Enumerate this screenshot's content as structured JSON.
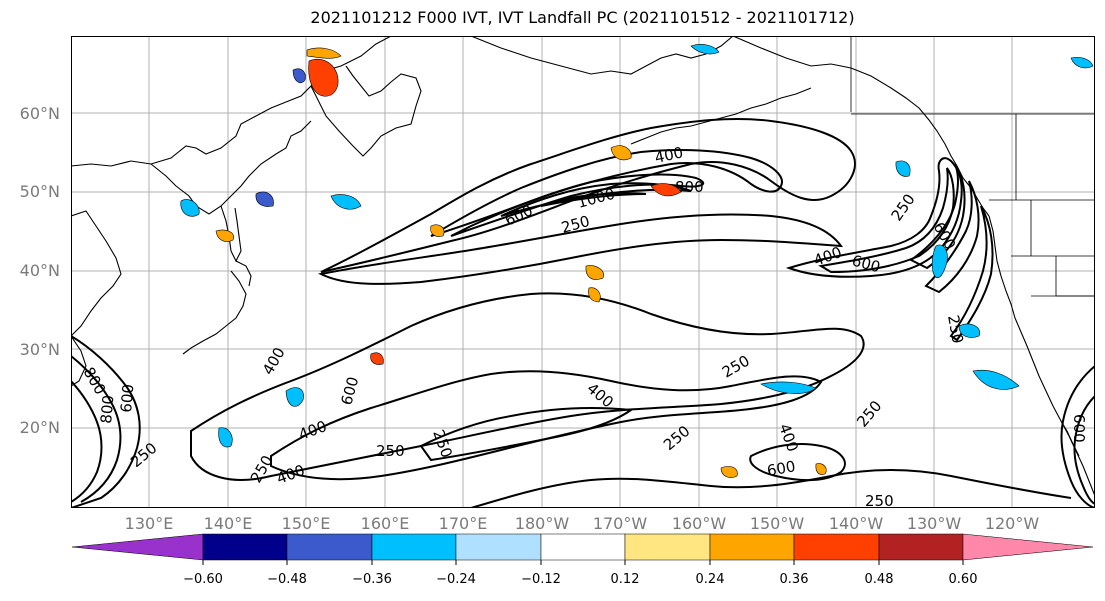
{
  "title": "2021101212 F000 IVT, IVT Landfall PC (2021101512 - 2021101712)",
  "lat_labels": [
    "60°N",
    "50°N",
    "40°N",
    "30°N",
    "20°N"
  ],
  "lon_labels": [
    "130°E",
    "140°E",
    "150°E",
    "160°E",
    "170°E",
    "180°W",
    "170°W",
    "160°W",
    "150°W",
    "140°W",
    "130°W",
    "120°W"
  ],
  "contour_labels": [
    "400",
    "800",
    "600",
    "1000",
    "250",
    "250",
    "400",
    "600",
    "250",
    "600",
    "250",
    "400",
    "600",
    "800",
    "600",
    "800",
    "400",
    "250",
    "250",
    "400",
    "250",
    "400",
    "250",
    "250",
    "400",
    "600",
    "250",
    "250",
    "600"
  ],
  "colorbar": {
    "ticks": [
      "−0.60",
      "−0.48",
      "−0.36",
      "−0.24",
      "−0.12",
      "0.12",
      "0.24",
      "0.36",
      "0.48",
      "0.60"
    ],
    "colors": [
      "#9932cc",
      "#00008b",
      "#3b5bcd",
      "#00bfff",
      "#b0e0ff",
      "#ffffff",
      "#ffe680",
      "#ffa500",
      "#ff4000",
      "#b22222",
      "#ff88aa"
    ]
  },
  "colors": {
    "land_outline": "#000000",
    "contour": "#000000",
    "grid": "#b0b0b0",
    "axis_label": "#7a7a7a"
  }
}
